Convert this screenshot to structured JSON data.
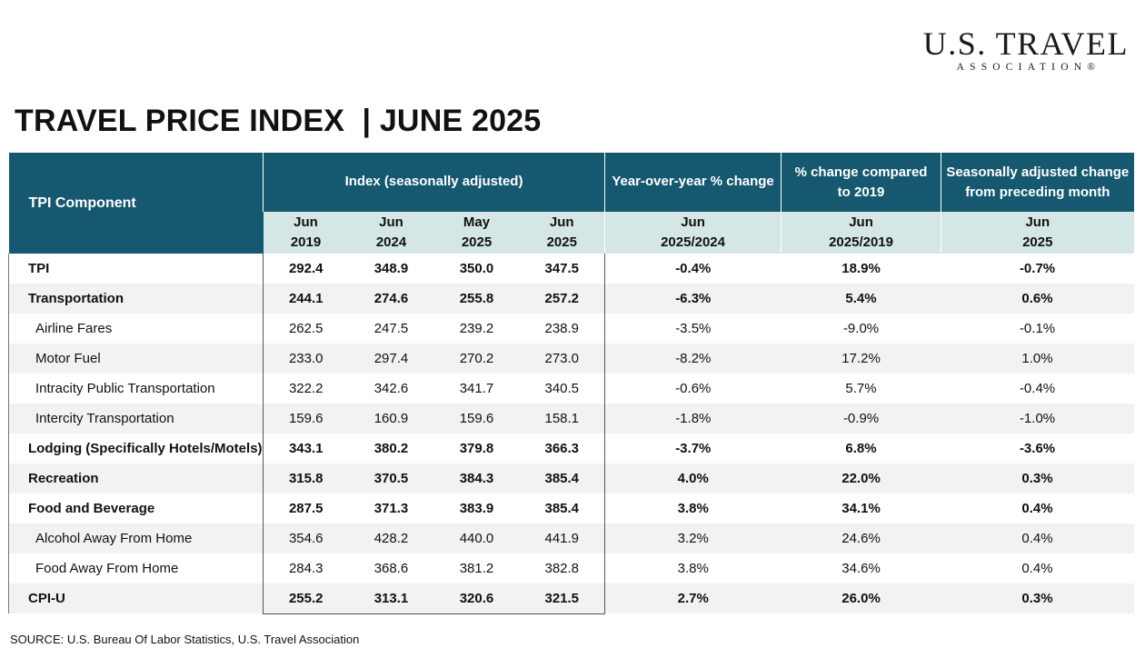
{
  "logo": {
    "main": "U.S. TRAVEL",
    "sub": "ASSOCIATION®"
  },
  "title": "TRAVEL PRICE INDEX  | JUNE 2025",
  "table": {
    "header_component": "TPI Component",
    "header_index": "Index  (seasonally adjusted)",
    "header_yoy": "Year-over-year % change",
    "header_2019": "% change compared to 2019",
    "header_mom": "Seasonally adjusted change from preceding month",
    "sub": {
      "c1": [
        "Jun",
        "2019"
      ],
      "c2": [
        "Jun",
        "2024"
      ],
      "c3": [
        "May",
        "2025"
      ],
      "c4": [
        "Jun",
        "2025"
      ],
      "c5": [
        "Jun",
        "2025/2024"
      ],
      "c6": [
        "Jun",
        "2025/2019"
      ],
      "c7": [
        "Jun",
        "2025"
      ]
    },
    "rows": [
      {
        "label": "TPI",
        "jun2019": "292.4",
        "jun2024": "348.9",
        "may2025": "350.0",
        "jun2025": "347.5",
        "yoy": "-0.4%",
        "vs2019": "18.9%",
        "mom": "-0.7%"
      },
      {
        "label": "Transportation",
        "jun2019": "244.1",
        "jun2024": "274.6",
        "may2025": "255.8",
        "jun2025": "257.2",
        "yoy": "-6.3%",
        "vs2019": "5.4%",
        "mom": "0.6%"
      },
      {
        "label": "Airline Fares",
        "jun2019": "262.5",
        "jun2024": "247.5",
        "may2025": "239.2",
        "jun2025": "238.9",
        "yoy": "-3.5%",
        "vs2019": "-9.0%",
        "mom": "-0.1%"
      },
      {
        "label": "Motor Fuel",
        "jun2019": "233.0",
        "jun2024": "297.4",
        "may2025": "270.2",
        "jun2025": "273.0",
        "yoy": "-8.2%",
        "vs2019": "17.2%",
        "mom": "1.0%"
      },
      {
        "label": "Intracity Public Transportation",
        "jun2019": "322.2",
        "jun2024": "342.6",
        "may2025": "341.7",
        "jun2025": "340.5",
        "yoy": "-0.6%",
        "vs2019": "5.7%",
        "mom": "-0.4%"
      },
      {
        "label": "Intercity Transportation",
        "jun2019": "159.6",
        "jun2024": "160.9",
        "may2025": "159.6",
        "jun2025": "158.1",
        "yoy": "-1.8%",
        "vs2019": "-0.9%",
        "mom": "-1.0%"
      },
      {
        "label": "Lodging (Specifically Hotels/Motels)",
        "jun2019": "343.1",
        "jun2024": "380.2",
        "may2025": "379.8",
        "jun2025": "366.3",
        "yoy": "-3.7%",
        "vs2019": "6.8%",
        "mom": "-3.6%"
      },
      {
        "label": "Recreation",
        "jun2019": "315.8",
        "jun2024": "370.5",
        "may2025": "384.3",
        "jun2025": "385.4",
        "yoy": "4.0%",
        "vs2019": "22.0%",
        "mom": "0.3%"
      },
      {
        "label": "Food and Beverage",
        "jun2019": "287.5",
        "jun2024": "371.3",
        "may2025": "383.9",
        "jun2025": "385.4",
        "yoy": "3.8%",
        "vs2019": "34.1%",
        "mom": "0.4%"
      },
      {
        "label": "Alcohol Away From Home",
        "jun2019": "354.6",
        "jun2024": "428.2",
        "may2025": "440.0",
        "jun2025": "441.9",
        "yoy": "3.2%",
        "vs2019": "24.6%",
        "mom": "0.4%"
      },
      {
        "label": "Food Away From Home",
        "jun2019": "284.3",
        "jun2024": "368.6",
        "may2025": "381.2",
        "jun2025": "382.8",
        "yoy": "3.8%",
        "vs2019": "34.6%",
        "mom": "0.4%"
      },
      {
        "label": "CPI-U",
        "jun2019": "255.2",
        "jun2024": "313.1",
        "may2025": "320.6",
        "jun2025": "321.5",
        "yoy": "2.7%",
        "vs2019": "26.0%",
        "mom": "0.3%"
      }
    ]
  },
  "source": "SOURCE: U.S. Bureau Of Labor Statistics, U.S. Travel Association",
  "colors": {
    "header_bg": "#16586f",
    "subheader_bg": "#d5e6e6",
    "row_alt_bg": "#f2f2f2"
  }
}
